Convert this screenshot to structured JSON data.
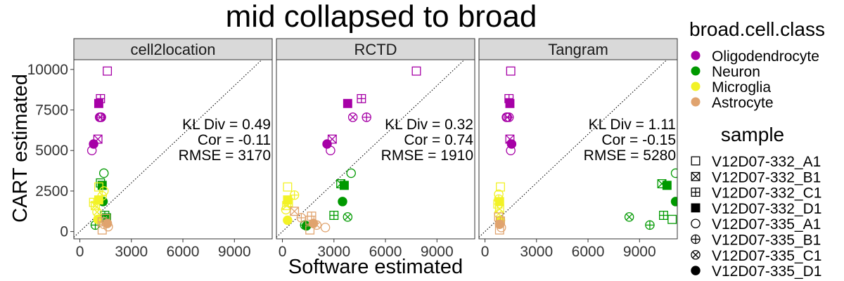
{
  "chart_data": {
    "type": "scatter",
    "title": "mid collapsed to broad",
    "xlabel": "Software estimated",
    "ylabel": "CART estimated",
    "xlim": [
      -350,
      11200
    ],
    "ylim": [
      -450,
      10600
    ],
    "x_ticks": [
      0,
      3000,
      6000,
      9000
    ],
    "x_tick_labels": [
      "0",
      "3000",
      "6000",
      "9000"
    ],
    "y_ticks": [
      0,
      2500,
      5000,
      7500,
      10000
    ],
    "y_tick_labels": [
      "0",
      "2500",
      "5000",
      "7500",
      "10000"
    ],
    "reference_line": "y = x (dotted)",
    "grid": false,
    "legend_position": "right",
    "color_legend": {
      "title": "broad.cell.class",
      "items": [
        {
          "label": "Oligodendrocyte",
          "color": "#a600a6"
        },
        {
          "label": "Neuron",
          "color": "#009900"
        },
        {
          "label": "Microglia",
          "color": "#f2f226"
        },
        {
          "label": "Astrocyte",
          "color": "#e0a36e"
        }
      ]
    },
    "shape_legend": {
      "title": "sample",
      "items": [
        {
          "label": "V12D07-332_A1",
          "shape": "square-open"
        },
        {
          "label": "V12D07-332_B1",
          "shape": "square-x"
        },
        {
          "label": "V12D07-332_C1",
          "shape": "square-plus"
        },
        {
          "label": "V12D07-332_D1",
          "shape": "square-filled"
        },
        {
          "label": "V12D07-335_A1",
          "shape": "circle-open"
        },
        {
          "label": "V12D07-335_B1",
          "shape": "circle-plus"
        },
        {
          "label": "V12D07-335_C1",
          "shape": "circle-x"
        },
        {
          "label": "V12D07-335_D1",
          "shape": "circle-filled"
        }
      ]
    },
    "facets": [
      {
        "name": "cell2location",
        "stats": [
          "KL Div = 0.49",
          "Cor = -0.11",
          "RMSE = 3170"
        ],
        "points": [
          {
            "cls": 0,
            "s": 0,
            "x": 1600,
            "y": 9900
          },
          {
            "cls": 0,
            "s": 2,
            "x": 1200,
            "y": 8200
          },
          {
            "cls": 0,
            "s": 3,
            "x": 1100,
            "y": 7900
          },
          {
            "cls": 0,
            "s": 4,
            "x": 1150,
            "y": 7050
          },
          {
            "cls": 0,
            "s": 5,
            "x": 1250,
            "y": 7050
          },
          {
            "cls": 0,
            "s": 6,
            "x": 1200,
            "y": 7050
          },
          {
            "cls": 0,
            "s": 1,
            "x": 1050,
            "y": 5700
          },
          {
            "cls": 0,
            "s": 7,
            "x": 800,
            "y": 5400
          },
          {
            "cls": 0,
            "s": 4,
            "x": 700,
            "y": 5000
          },
          {
            "cls": 1,
            "s": 4,
            "x": 1400,
            "y": 3600
          },
          {
            "cls": 1,
            "s": 0,
            "x": 1200,
            "y": 3000
          },
          {
            "cls": 1,
            "s": 3,
            "x": 1300,
            "y": 2850
          },
          {
            "cls": 1,
            "s": 7,
            "x": 1350,
            "y": 1850
          },
          {
            "cls": 1,
            "s": 2,
            "x": 1450,
            "y": 1000
          },
          {
            "cls": 1,
            "s": 1,
            "x": 1550,
            "y": 850
          },
          {
            "cls": 1,
            "s": 5,
            "x": 900,
            "y": 400
          },
          {
            "cls": 1,
            "s": 6,
            "x": 1500,
            "y": 700
          },
          {
            "cls": 2,
            "s": 0,
            "x": 1100,
            "y": 2750
          },
          {
            "cls": 2,
            "s": 4,
            "x": 1400,
            "y": 2500
          },
          {
            "cls": 2,
            "s": 5,
            "x": 1300,
            "y": 2200
          },
          {
            "cls": 2,
            "s": 3,
            "x": 1100,
            "y": 1950
          },
          {
            "cls": 2,
            "s": 2,
            "x": 800,
            "y": 1800
          },
          {
            "cls": 2,
            "s": 1,
            "x": 900,
            "y": 1600
          },
          {
            "cls": 2,
            "s": 7,
            "x": 1050,
            "y": 750
          },
          {
            "cls": 2,
            "s": 6,
            "x": 1000,
            "y": 1200
          },
          {
            "cls": 3,
            "s": 0,
            "x": 1500,
            "y": 800
          },
          {
            "cls": 3,
            "s": 2,
            "x": 1300,
            "y": 600
          },
          {
            "cls": 3,
            "s": 7,
            "x": 1600,
            "y": 500
          },
          {
            "cls": 3,
            "s": 4,
            "x": 1650,
            "y": 300
          },
          {
            "cls": 3,
            "s": 5,
            "x": 1400,
            "y": 450
          },
          {
            "cls": 3,
            "s": 0,
            "x": 1300,
            "y": 100
          }
        ]
      },
      {
        "name": "RCTD",
        "stats": [
          "KL Div = 0.32",
          "Cor = 0.74",
          "RMSE = 1910"
        ],
        "points": [
          {
            "cls": 0,
            "s": 0,
            "x": 7800,
            "y": 9900
          },
          {
            "cls": 0,
            "s": 2,
            "x": 4600,
            "y": 8200
          },
          {
            "cls": 0,
            "s": 3,
            "x": 3800,
            "y": 7900
          },
          {
            "cls": 0,
            "s": 6,
            "x": 4100,
            "y": 7050
          },
          {
            "cls": 0,
            "s": 5,
            "x": 4900,
            "y": 7050
          },
          {
            "cls": 0,
            "s": 1,
            "x": 2900,
            "y": 5700
          },
          {
            "cls": 0,
            "s": 7,
            "x": 2600,
            "y": 5400
          },
          {
            "cls": 0,
            "s": 4,
            "x": 2800,
            "y": 5000
          },
          {
            "cls": 1,
            "s": 4,
            "x": 4000,
            "y": 3600
          },
          {
            "cls": 1,
            "s": 1,
            "x": 3400,
            "y": 2950
          },
          {
            "cls": 1,
            "s": 3,
            "x": 3600,
            "y": 2850
          },
          {
            "cls": 1,
            "s": 7,
            "x": 3500,
            "y": 1850
          },
          {
            "cls": 1,
            "s": 2,
            "x": 3000,
            "y": 1000
          },
          {
            "cls": 1,
            "s": 6,
            "x": 3800,
            "y": 900
          },
          {
            "cls": 1,
            "s": 5,
            "x": 1300,
            "y": 400
          },
          {
            "cls": 1,
            "s": 7,
            "x": 1400,
            "y": 350
          },
          {
            "cls": 2,
            "s": 0,
            "x": 300,
            "y": 2750
          },
          {
            "cls": 2,
            "s": 5,
            "x": 700,
            "y": 2250
          },
          {
            "cls": 2,
            "s": 3,
            "x": 300,
            "y": 1950
          },
          {
            "cls": 2,
            "s": 2,
            "x": 350,
            "y": 1800
          },
          {
            "cls": 2,
            "s": 1,
            "x": 250,
            "y": 1600
          },
          {
            "cls": 2,
            "s": 4,
            "x": 200,
            "y": 1350
          },
          {
            "cls": 2,
            "s": 7,
            "x": 300,
            "y": 700
          },
          {
            "cls": 3,
            "s": 1,
            "x": 700,
            "y": 1250
          },
          {
            "cls": 3,
            "s": 2,
            "x": 1700,
            "y": 950
          },
          {
            "cls": 3,
            "s": 0,
            "x": 1600,
            "y": 700
          },
          {
            "cls": 3,
            "s": 7,
            "x": 1800,
            "y": 500
          },
          {
            "cls": 3,
            "s": 5,
            "x": 1100,
            "y": 850
          },
          {
            "cls": 3,
            "s": 4,
            "x": 2500,
            "y": 250
          },
          {
            "cls": 3,
            "s": 0,
            "x": 1600,
            "y": 100
          },
          {
            "cls": 3,
            "s": 6,
            "x": 2000,
            "y": 400
          }
        ]
      },
      {
        "name": "Tangram",
        "stats": [
          "KL Div = 1.11",
          "Cor = -0.15",
          "RMSE = 5280"
        ],
        "points": [
          {
            "cls": 0,
            "s": 0,
            "x": 1500,
            "y": 9900
          },
          {
            "cls": 0,
            "s": 2,
            "x": 1400,
            "y": 8200
          },
          {
            "cls": 0,
            "s": 3,
            "x": 1450,
            "y": 7900
          },
          {
            "cls": 0,
            "s": 4,
            "x": 1250,
            "y": 7050
          },
          {
            "cls": 0,
            "s": 5,
            "x": 1400,
            "y": 7050
          },
          {
            "cls": 0,
            "s": 6,
            "x": 1300,
            "y": 7050
          },
          {
            "cls": 0,
            "s": 1,
            "x": 1450,
            "y": 5700
          },
          {
            "cls": 0,
            "s": 7,
            "x": 1550,
            "y": 5400
          },
          {
            "cls": 0,
            "s": 4,
            "x": 1500,
            "y": 5000
          },
          {
            "cls": 1,
            "s": 4,
            "x": 11100,
            "y": 3600
          },
          {
            "cls": 1,
            "s": 1,
            "x": 10300,
            "y": 2950
          },
          {
            "cls": 1,
            "s": 3,
            "x": 10600,
            "y": 2850
          },
          {
            "cls": 1,
            "s": 7,
            "x": 11100,
            "y": 1850
          },
          {
            "cls": 1,
            "s": 2,
            "x": 10400,
            "y": 1000
          },
          {
            "cls": 1,
            "s": 0,
            "x": 10900,
            "y": 750
          },
          {
            "cls": 1,
            "s": 6,
            "x": 8400,
            "y": 900
          },
          {
            "cls": 1,
            "s": 5,
            "x": 9600,
            "y": 400
          },
          {
            "cls": 2,
            "s": 0,
            "x": 900,
            "y": 2750
          },
          {
            "cls": 2,
            "s": 4,
            "x": 800,
            "y": 2300
          },
          {
            "cls": 2,
            "s": 5,
            "x": 800,
            "y": 2000
          },
          {
            "cls": 2,
            "s": 3,
            "x": 850,
            "y": 1850
          },
          {
            "cls": 2,
            "s": 2,
            "x": 750,
            "y": 1700
          },
          {
            "cls": 2,
            "s": 1,
            "x": 850,
            "y": 1400
          },
          {
            "cls": 2,
            "s": 6,
            "x": 800,
            "y": 1100
          },
          {
            "cls": 2,
            "s": 7,
            "x": 900,
            "y": 700
          },
          {
            "cls": 3,
            "s": 0,
            "x": 800,
            "y": 900
          },
          {
            "cls": 3,
            "s": 2,
            "x": 900,
            "y": 650
          },
          {
            "cls": 3,
            "s": 7,
            "x": 850,
            "y": 450
          },
          {
            "cls": 3,
            "s": 4,
            "x": 950,
            "y": 250
          },
          {
            "cls": 3,
            "s": 0,
            "x": 850,
            "y": 100
          }
        ]
      }
    ]
  }
}
